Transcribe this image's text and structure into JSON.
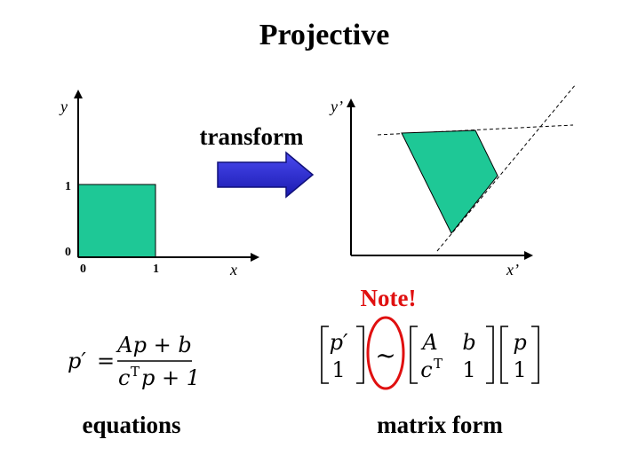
{
  "title": "Projective",
  "left_plot": {
    "y_label": "y",
    "x_label": "x",
    "y_ticks": [
      "1",
      "0"
    ],
    "x_ticks": [
      "0",
      "1"
    ]
  },
  "arrow_label": "transform",
  "right_plot": {
    "y_label": "y’",
    "x_label": "x’"
  },
  "note": "Note!",
  "equation": {
    "lhs": "p′",
    "equals": "=",
    "numerator": "Ap + b",
    "denominator": [
      "c",
      "T",
      "p + 1"
    ]
  },
  "matrix": {
    "left": [
      "p′",
      "1"
    ],
    "relation": "~",
    "middle": [
      "A",
      "b",
      "c",
      "T",
      "1"
    ],
    "right": [
      "p",
      "1"
    ]
  },
  "captions": [
    "equations",
    "matrix form"
  ]
}
